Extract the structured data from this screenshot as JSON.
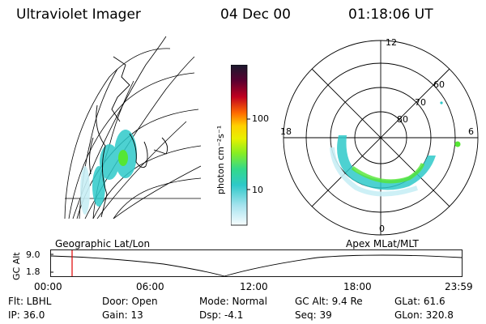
{
  "header": {
    "title": "Ultraviolet Imager",
    "date": "04 Dec 00",
    "time": "01:18:06 UT"
  },
  "colorbar": {
    "unit_label": "photon cm⁻²s⁻¹",
    "ticks": [
      "100",
      "10"
    ],
    "colors": [
      "#1a1a2e",
      "#4a0020",
      "#a0001a",
      "#e81818",
      "#ff7a00",
      "#ffcc00",
      "#f5f51a",
      "#aaf000",
      "#55e633",
      "#33d98a",
      "#2ec9c9",
      "#7ad8e8",
      "#c8eef5",
      "#f5fbfd"
    ]
  },
  "left_map": {
    "label": "Geographic Lat/Lon"
  },
  "right_map": {
    "label": "Apex  MLat/MLT",
    "mlt_labels": {
      "top": "12",
      "left": "18",
      "right": "6",
      "bottom": "0"
    },
    "lat_labels": [
      "60",
      "70",
      "80"
    ]
  },
  "altitude_panel": {
    "axis_label": "GC Alt",
    "y_ticks": [
      "9.0",
      "1.8"
    ],
    "x_ticks": [
      "00:00",
      "06:00",
      "12:00",
      "18:00",
      "23:59"
    ],
    "marker_color": "#e00000"
  },
  "status": {
    "flt": "Flt: LBHL",
    "ip": "IP: 36.0",
    "door": "Door: Open",
    "gain": "Gain: 13",
    "mode": "Mode: Normal",
    "dsp": "Dsp:    -4.1",
    "gcalt": "GC Alt: 9.4 Re",
    "seq": "Seq: 39",
    "glat": "GLat:  61.6",
    "glon": "GLon: 320.8"
  }
}
